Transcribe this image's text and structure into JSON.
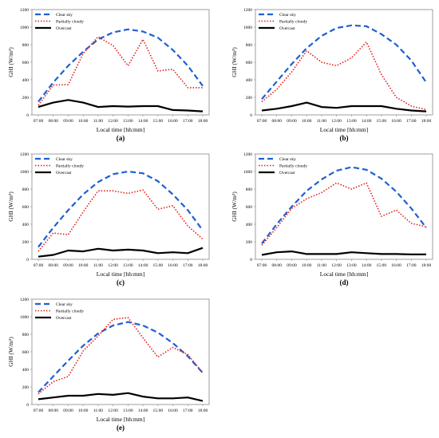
{
  "chart_data": [
    {
      "type": "line",
      "caption": "(a)",
      "xlabel": "Local time [hh:mm]",
      "ylabel": "GHI (W/m²)",
      "ylim": [
        0,
        1200
      ],
      "yticks": [
        0,
        200,
        400,
        600,
        800,
        1000,
        1200
      ],
      "categories": [
        "07:00",
        "08:00",
        "09:00",
        "10:00",
        "11:00",
        "12:00",
        "13:00",
        "14:00",
        "15:00",
        "16:00",
        "17:00",
        "18:00"
      ],
      "legend_position": "top-left",
      "series": [
        {
          "name": "Clear sky",
          "style": "dashed",
          "color": "#1f5fd6",
          "values": [
            150,
            370,
            560,
            720,
            860,
            940,
            975,
            950,
            880,
            740,
            560,
            330
          ]
        },
        {
          "name": "Partially cloudy",
          "style": "dotted",
          "color": "#e0201a",
          "values": [
            110,
            340,
            345,
            700,
            890,
            790,
            560,
            860,
            500,
            520,
            310,
            310
          ]
        },
        {
          "name": "Overcast",
          "style": "solid",
          "color": "#000000",
          "values": [
            90,
            140,
            170,
            140,
            90,
            100,
            95,
            100,
            100,
            55,
            50,
            40
          ]
        }
      ]
    },
    {
      "type": "line",
      "caption": "(b)",
      "xlabel": "Local time [hh:mm]",
      "ylabel": "GHI (W/m²)",
      "ylim": [
        0,
        1200
      ],
      "yticks": [
        0,
        200,
        400,
        600,
        800,
        1000,
        1200
      ],
      "categories": [
        "07:00",
        "08:00",
        "09:00",
        "10:00",
        "11:00",
        "12:00",
        "13:00",
        "14:00",
        "15:00",
        "16:00",
        "17:00",
        "18:00"
      ],
      "legend_position": "top-left",
      "series": [
        {
          "name": "Clear sky",
          "style": "dashed",
          "color": "#1f5fd6",
          "values": [
            180,
            380,
            580,
            760,
            900,
            990,
            1020,
            1010,
            920,
            800,
            620,
            370
          ]
        },
        {
          "name": "Partially cloudy",
          "style": "dotted",
          "color": "#e0201a",
          "values": [
            150,
            290,
            490,
            730,
            600,
            560,
            650,
            830,
            460,
            200,
            100,
            60
          ]
        },
        {
          "name": "Overcast",
          "style": "solid",
          "color": "#000000",
          "values": [
            50,
            70,
            100,
            140,
            90,
            80,
            100,
            100,
            100,
            70,
            50,
            40
          ]
        }
      ]
    },
    {
      "type": "line",
      "caption": "(c)",
      "xlabel": "Local time [hh:mm]",
      "ylabel": "GHI (W/m²)",
      "ylim": [
        0,
        1200
      ],
      "yticks": [
        0,
        200,
        400,
        600,
        800,
        1000,
        1200
      ],
      "categories": [
        "07:00",
        "08:00",
        "09:00",
        "10:00",
        "11:00",
        "12:00",
        "13:00",
        "14:00",
        "15:00",
        "16:00",
        "17:00",
        "18:00"
      ],
      "legend_position": "top-left",
      "series": [
        {
          "name": "Clear sky",
          "style": "dashed",
          "color": "#1f5fd6",
          "values": [
            140,
            360,
            560,
            740,
            880,
            970,
            1000,
            980,
            890,
            740,
            560,
            330
          ]
        },
        {
          "name": "Partially cloudy",
          "style": "dotted",
          "color": "#e0201a",
          "values": [
            90,
            300,
            280,
            540,
            780,
            780,
            750,
            790,
            570,
            610,
            380,
            230
          ]
        },
        {
          "name": "Overcast",
          "style": "solid",
          "color": "#000000",
          "values": [
            30,
            50,
            100,
            90,
            120,
            100,
            110,
            100,
            70,
            80,
            70,
            130
          ]
        }
      ]
    },
    {
      "type": "line",
      "caption": "(d)",
      "xlabel": "Local time [hh:mm]",
      "ylabel": "GHI (W/m²)",
      "ylim": [
        0,
        1200
      ],
      "yticks": [
        0,
        200,
        400,
        600,
        800,
        1000,
        1200
      ],
      "categories": [
        "07:00",
        "08:00",
        "09:00",
        "10:00",
        "11:00",
        "12:00",
        "13:00",
        "14:00",
        "15:00",
        "16:00",
        "17:00",
        "18:00"
      ],
      "legend_position": "top-left",
      "series": [
        {
          "name": "Clear sky",
          "style": "dashed",
          "color": "#1f5fd6",
          "values": [
            180,
            400,
            600,
            780,
            910,
            1010,
            1050,
            1020,
            920,
            770,
            580,
            360
          ]
        },
        {
          "name": "Partially cloudy",
          "style": "dotted",
          "color": "#e0201a",
          "values": [
            160,
            360,
            580,
            690,
            760,
            870,
            800,
            870,
            490,
            560,
            410,
            370
          ]
        },
        {
          "name": "Overcast",
          "style": "solid",
          "color": "#000000",
          "values": [
            50,
            80,
            90,
            60,
            60,
            60,
            80,
            70,
            60,
            60,
            55,
            55
          ]
        }
      ]
    },
    {
      "type": "line",
      "caption": "(e)",
      "xlabel": "Local time [hh:mm]",
      "ylabel": "GHI (W/m²)",
      "ylim": [
        0,
        1200
      ],
      "yticks": [
        0,
        200,
        400,
        600,
        800,
        1000,
        1200
      ],
      "categories": [
        "07:00",
        "08:00",
        "09:00",
        "10:00",
        "11:00",
        "12:00",
        "13:00",
        "14:00",
        "15:00",
        "16:00",
        "17:00",
        "18:00"
      ],
      "legend_position": "top-left",
      "series": [
        {
          "name": "Clear sky",
          "style": "dashed",
          "color": "#1f5fd6",
          "values": [
            140,
            320,
            500,
            670,
            810,
            900,
            940,
            900,
            820,
            700,
            550,
            360
          ]
        },
        {
          "name": "Partially cloudy",
          "style": "dotted",
          "color": "#e0201a",
          "values": [
            120,
            260,
            320,
            610,
            780,
            970,
            990,
            760,
            540,
            650,
            570,
            360
          ]
        },
        {
          "name": "Overcast",
          "style": "solid",
          "color": "#000000",
          "values": [
            60,
            80,
            100,
            100,
            120,
            110,
            130,
            90,
            70,
            70,
            80,
            40
          ]
        }
      ]
    }
  ]
}
